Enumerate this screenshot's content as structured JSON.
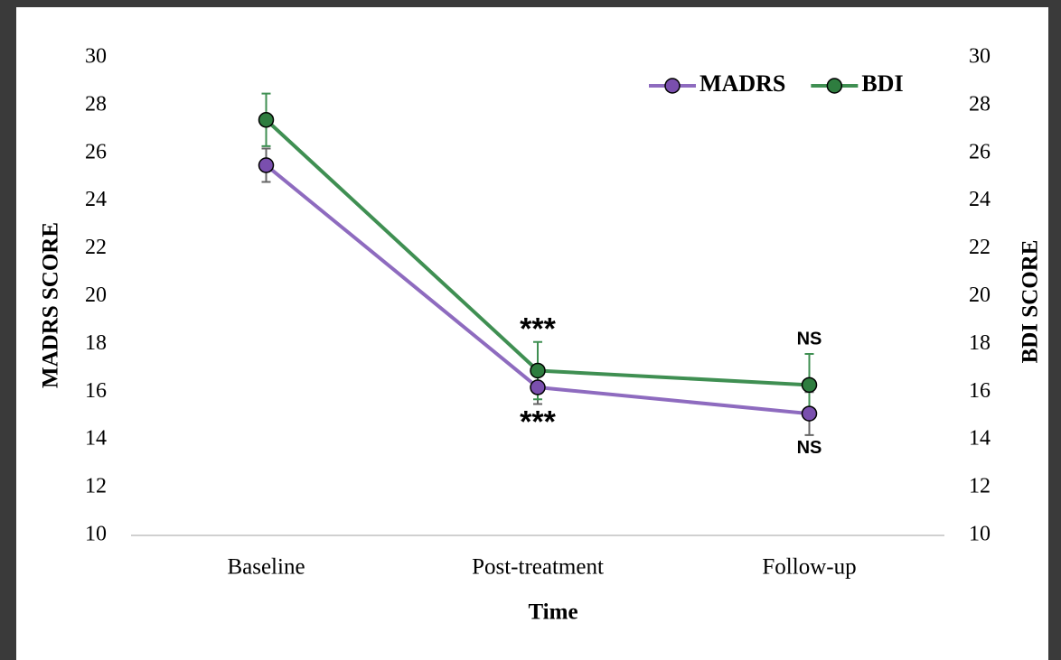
{
  "chart_data": {
    "type": "line",
    "x_label": "Time",
    "y_label": "MADRS SCORE",
    "y2_label": "BDI SCORE",
    "categories": [
      "Baseline",
      "Post-treatment",
      "Follow-up"
    ],
    "ylim": [
      10,
      30
    ],
    "yticks": [
      10,
      12,
      14,
      16,
      18,
      20,
      22,
      24,
      26,
      28,
      30
    ],
    "y2lim": [
      10,
      30
    ],
    "y2ticks": [
      10,
      12,
      14,
      16,
      18,
      20,
      22,
      24,
      26,
      28,
      30
    ],
    "grid": false,
    "legend": "top-right",
    "series": [
      {
        "name": "MADRS",
        "color": "#8e6bbf",
        "marker_color": "#7a4fae",
        "error_color": "#666666",
        "values": [
          25.5,
          16.2,
          15.1
        ],
        "errors": [
          0.7,
          0.7,
          0.9
        ],
        "annotations": [
          null,
          "***",
          "NS"
        ]
      },
      {
        "name": "BDI",
        "color": "#3f8f52",
        "marker_color": "#2e7d3f",
        "error_color": "#3f8f52",
        "axis": "y2",
        "values": [
          27.4,
          16.9,
          16.3
        ],
        "errors": [
          1.1,
          1.2,
          1.3
        ],
        "annotations": [
          null,
          "***",
          "NS"
        ]
      }
    ]
  }
}
